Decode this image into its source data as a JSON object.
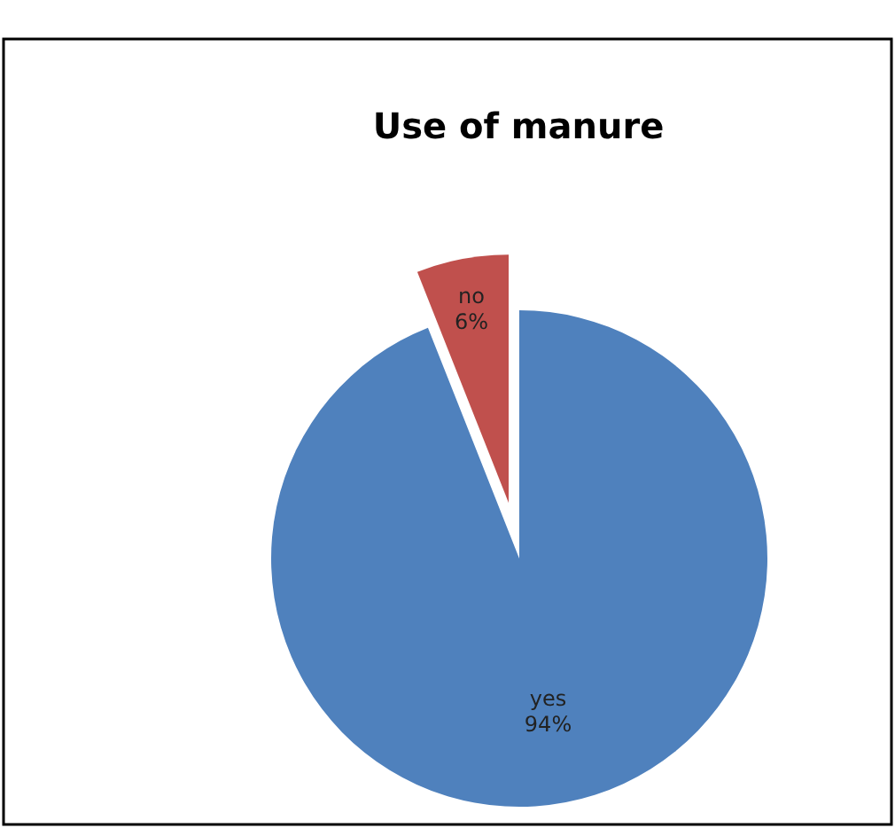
{
  "chart_data": {
    "type": "pie",
    "title": "Use of manure",
    "categories": [
      "yes",
      "no"
    ],
    "values": [
      94,
      6
    ],
    "colors": [
      "#4f81bd",
      "#c0504d"
    ],
    "value_labels": [
      "94%",
      "6%"
    ]
  }
}
